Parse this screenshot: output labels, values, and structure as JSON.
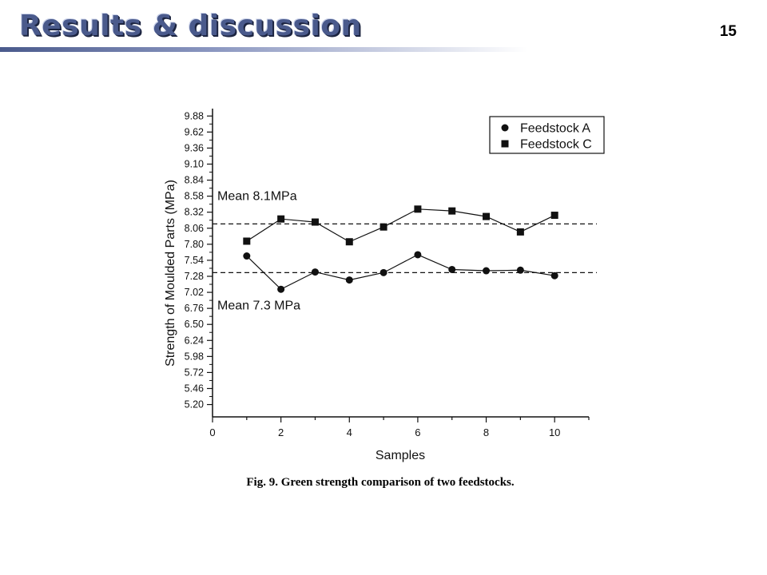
{
  "slide": {
    "title": "Results & discussion",
    "page_number": "15"
  },
  "caption": "Fig. 9. Green strength comparison of two feedstocks.",
  "chart_data": {
    "type": "scatter",
    "xlabel": "Samples",
    "ylabel": "Strength of Moulded Parts (MPa)",
    "xlim": [
      0,
      11
    ],
    "ylim": [
      5.0,
      10.0
    ],
    "x_ticks": [
      0,
      2,
      4,
      6,
      8,
      10
    ],
    "y_ticks": [
      5.2,
      5.46,
      5.72,
      5.98,
      6.24,
      6.5,
      6.76,
      7.02,
      7.28,
      7.54,
      7.8,
      8.06,
      8.32,
      8.58,
      8.84,
      9.1,
      9.36,
      9.62,
      9.88
    ],
    "y_tick_labels": [
      "5.20",
      "5.46",
      "5.72",
      "5.98",
      "6.24",
      "6.50",
      "6.76",
      "7.02",
      "7.28",
      "7.54",
      "7.80",
      "8.06",
      "8.32",
      "8.58",
      "8.84",
      "9.10",
      "9.36",
      "9.62",
      "9.88"
    ],
    "legend_position": "top-right",
    "series": [
      {
        "name": "Feedstock A",
        "marker": "circle",
        "x": [
          1,
          2,
          3,
          4,
          5,
          6,
          7,
          8,
          9,
          10
        ],
        "y": [
          7.61,
          7.07,
          7.35,
          7.22,
          7.34,
          7.63,
          7.39,
          7.37,
          7.38,
          7.29
        ]
      },
      {
        "name": "Feedstock C",
        "marker": "square",
        "x": [
          1,
          2,
          3,
          4,
          5,
          6,
          7,
          8,
          9,
          10
        ],
        "y": [
          7.85,
          8.21,
          8.16,
          7.84,
          8.08,
          8.37,
          8.34,
          8.25,
          8.0,
          8.27
        ]
      }
    ],
    "reference_lines": [
      {
        "label": "Mean 8.1MPa",
        "y": 8.13
      },
      {
        "label": "Mean 7.3 MPa",
        "y": 7.34
      }
    ],
    "colors": {
      "ink": "#111111"
    }
  }
}
